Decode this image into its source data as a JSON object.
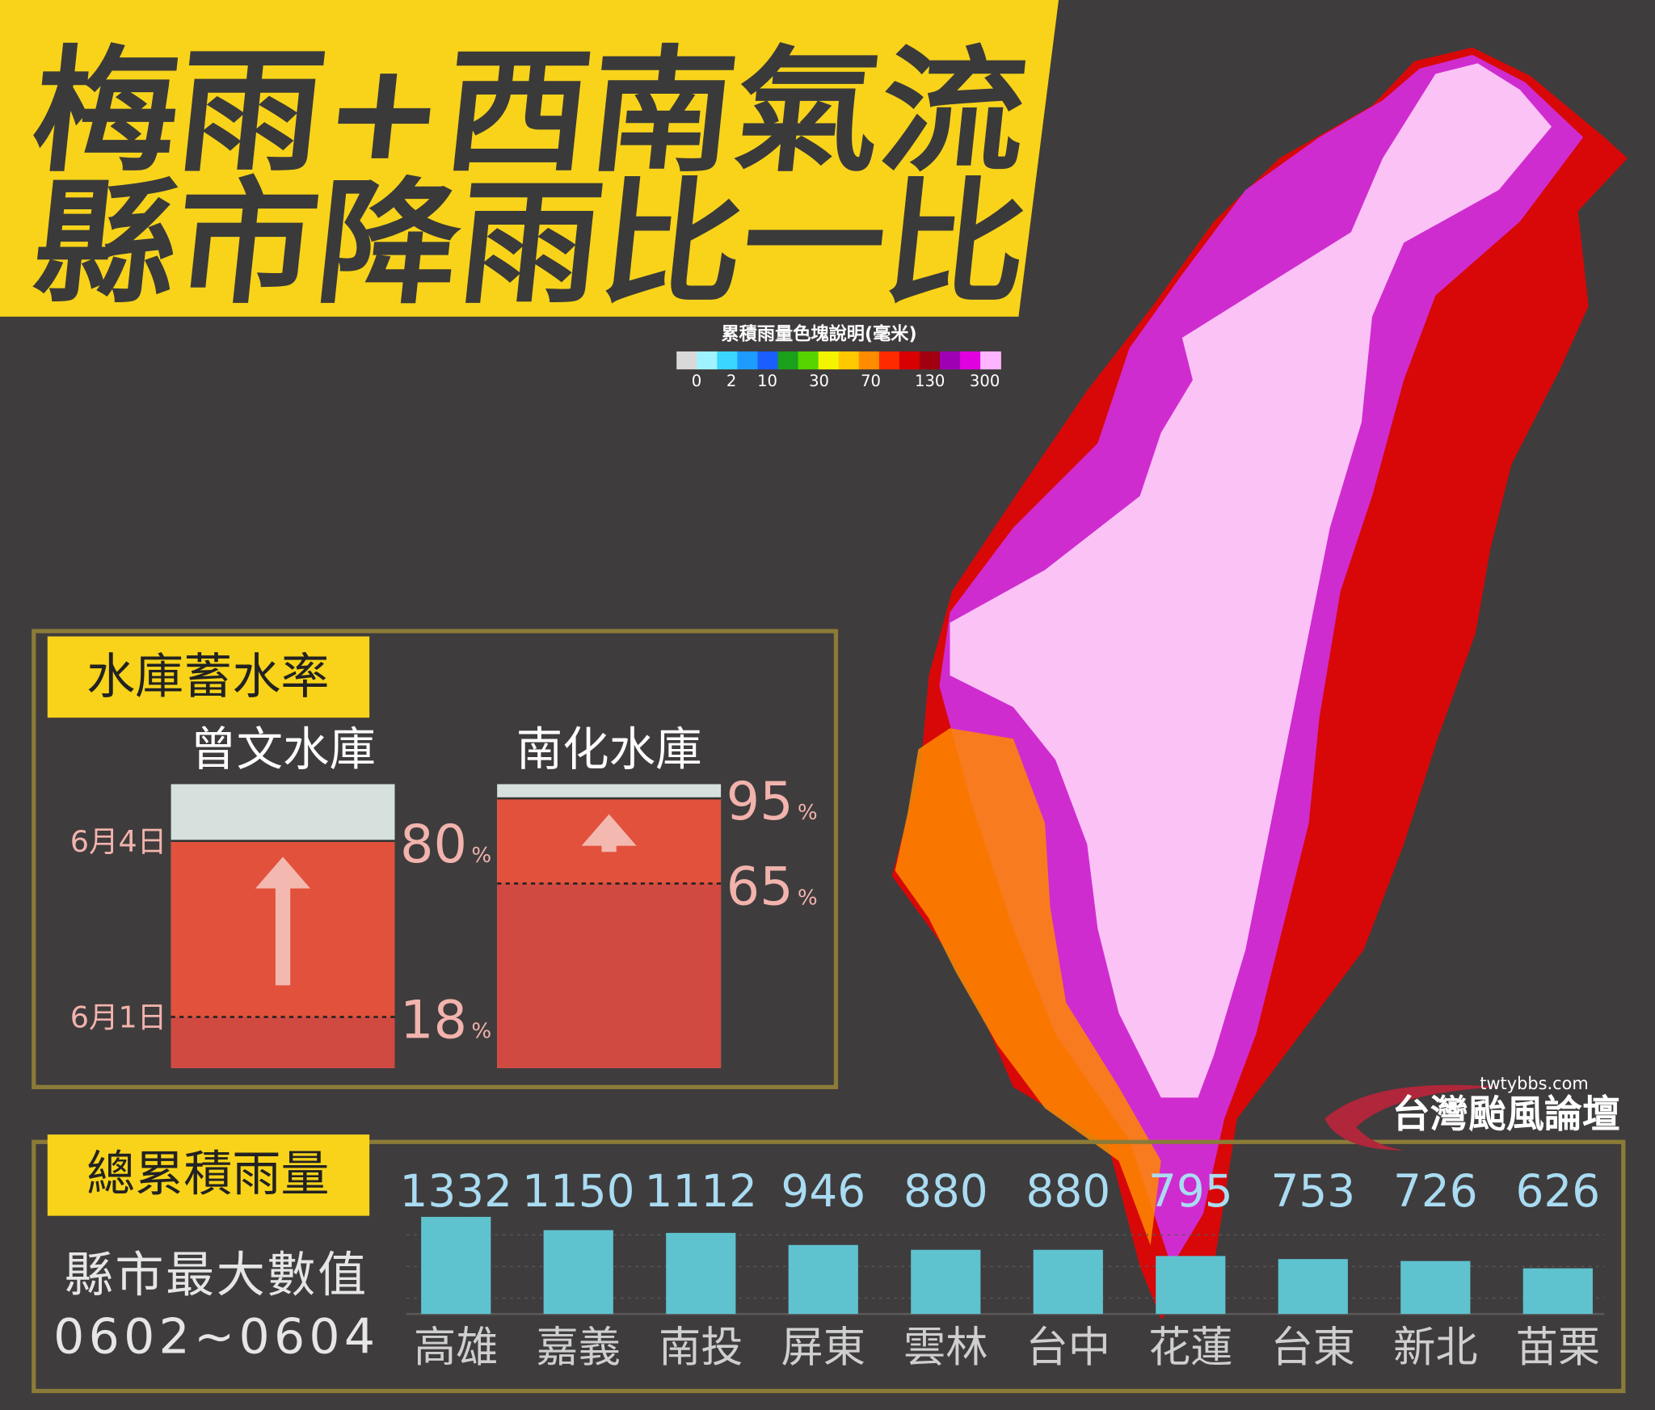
{
  "title": [
    "梅雨+西南氣流",
    "縣市降雨比一比"
  ],
  "legend": {
    "title": "累積雨量色塊說明(毫米)",
    "labels": [
      "0",
      "2",
      "10",
      "30",
      "70",
      "130",
      "300"
    ],
    "colors": [
      "#d9d9d9",
      "#9ef3ff",
      "#3ad6ff",
      "#1e9bff",
      "#1a5eff",
      "#1aa01a",
      "#55d400",
      "#f4f400",
      "#ffc800",
      "#ff8c00",
      "#ff2a00",
      "#d80000",
      "#a00010",
      "#a000b4",
      "#e000e0",
      "#ffb4ff"
    ]
  },
  "reservoir": {
    "title": "水庫蓄水率",
    "date_start": "6月1日",
    "date_end": "6月4日",
    "unit": "%",
    "colors": {
      "empty": "#d6e0dc",
      "gain": "#e2513c",
      "base": "#d04a42"
    },
    "items": [
      {
        "name": "曾文水庫",
        "before": 18,
        "after": 80
      },
      {
        "name": "南化水庫",
        "before": 65,
        "after": 95
      }
    ]
  },
  "chart_data": {
    "type": "bar",
    "title": "總累積雨量",
    "subtitle": [
      "縣市最大數值",
      "0602~0604"
    ],
    "categories": [
      "高雄",
      "嘉義",
      "南投",
      "屏東",
      "雲林",
      "台中",
      "花蓮",
      "台東",
      "新北",
      "苗栗"
    ],
    "values": [
      1332,
      1150,
      1112,
      946,
      880,
      880,
      795,
      753,
      726,
      626
    ],
    "color": "#5ec3cf"
  },
  "watermark": {
    "site": "twtybbs.com",
    "name": "台灣颱風論壇"
  }
}
